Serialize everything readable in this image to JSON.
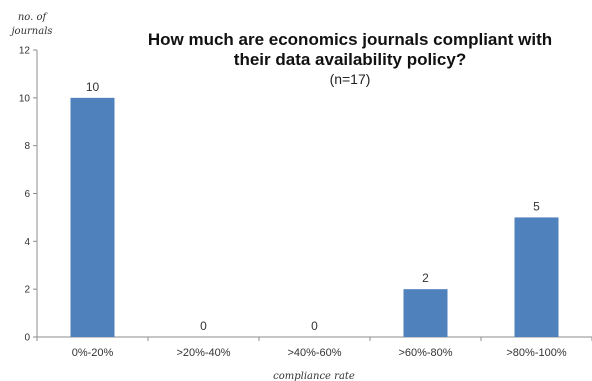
{
  "chart_data": {
    "type": "bar",
    "title_line1": "How much are economics journals compliant with",
    "title_line2": "their data availability policy?",
    "subtitle": "(n=17)",
    "ylabel_line1": "no. of",
    "ylabel_line2": "journals",
    "xlabel": "compliance rate",
    "categories": [
      "0%-20%",
      ">20%-40%",
      ">40%-60%",
      ">60%-80%",
      ">80%-100%"
    ],
    "values": [
      10,
      0,
      0,
      2,
      5
    ],
    "data_labels": [
      "10",
      "0",
      "0",
      "2",
      "5"
    ],
    "ylim": [
      0,
      12
    ],
    "yticks": [
      0,
      2,
      4,
      6,
      8,
      10,
      12
    ],
    "ytick_labels": [
      "0",
      "2",
      "4",
      "6",
      "8",
      "10",
      "12"
    ],
    "grid": false,
    "bar_color": "#4f81bd",
    "axis_color": "#8c8c8c"
  }
}
